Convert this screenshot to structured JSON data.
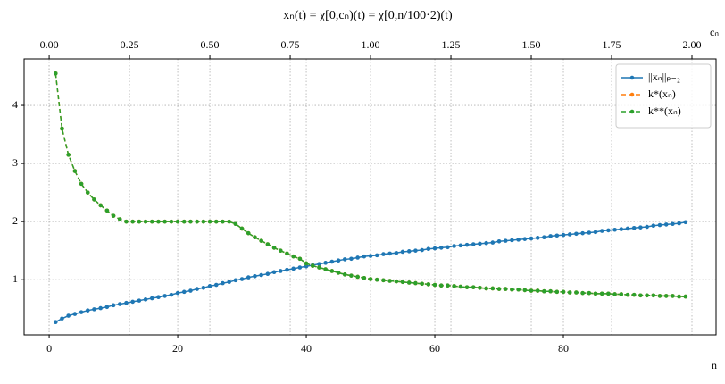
{
  "chart_data": {
    "type": "line",
    "title": "xₙ(t) = χ[0,cₙ)(t) = χ[0,n/100·2)(t)",
    "xlabel": "n",
    "x2label": "cₙ",
    "x": [
      1,
      2,
      3,
      4,
      5,
      6,
      7,
      8,
      9,
      10,
      11,
      12,
      13,
      14,
      15,
      16,
      17,
      18,
      19,
      20,
      21,
      22,
      23,
      24,
      25,
      26,
      27,
      28,
      29,
      30,
      31,
      32,
      33,
      34,
      35,
      36,
      37,
      38,
      39,
      40,
      41,
      42,
      43,
      44,
      45,
      46,
      47,
      48,
      49,
      50,
      51,
      52,
      53,
      54,
      55,
      56,
      57,
      58,
      59,
      60,
      61,
      62,
      63,
      64,
      65,
      66,
      67,
      68,
      69,
      70,
      71,
      72,
      73,
      74,
      75,
      76,
      77,
      78,
      79,
      80,
      81,
      82,
      83,
      84,
      85,
      86,
      87,
      88,
      89,
      90,
      91,
      92,
      93,
      94,
      95,
      96,
      97,
      98,
      99
    ],
    "series": [
      {
        "name": "||xₙ||ₚ₌₂",
        "color": "#1f77b4",
        "dashed": false,
        "values": [
          0.27,
          0.33,
          0.38,
          0.41,
          0.44,
          0.47,
          0.49,
          0.51,
          0.53,
          0.56,
          0.58,
          0.6,
          0.62,
          0.64,
          0.66,
          0.68,
          0.7,
          0.72,
          0.74,
          0.77,
          0.79,
          0.81,
          0.84,
          0.86,
          0.89,
          0.91,
          0.94,
          0.96,
          0.99,
          1.01,
          1.04,
          1.06,
          1.08,
          1.1,
          1.13,
          1.15,
          1.17,
          1.19,
          1.21,
          1.23,
          1.25,
          1.27,
          1.29,
          1.31,
          1.33,
          1.35,
          1.36,
          1.38,
          1.4,
          1.41,
          1.42,
          1.44,
          1.45,
          1.46,
          1.48,
          1.49,
          1.5,
          1.51,
          1.53,
          1.54,
          1.55,
          1.56,
          1.58,
          1.59,
          1.6,
          1.61,
          1.62,
          1.63,
          1.64,
          1.66,
          1.67,
          1.68,
          1.69,
          1.7,
          1.71,
          1.72,
          1.73,
          1.75,
          1.76,
          1.77,
          1.78,
          1.79,
          1.8,
          1.81,
          1.82,
          1.84,
          1.85,
          1.86,
          1.87,
          1.88,
          1.89,
          1.9,
          1.91,
          1.93,
          1.94,
          1.95,
          1.96,
          1.97,
          1.99
        ]
      },
      {
        "name": "k*(xₙ)",
        "color": "#ff7f0e",
        "dashed": true,
        "values": [
          4.55,
          3.6,
          3.15,
          2.87,
          2.65,
          2.5,
          2.38,
          2.28,
          2.19,
          2.1,
          2.04,
          2.0,
          2.0,
          2.0,
          2.0,
          2.0,
          2.0,
          2.0,
          2.0,
          2.0,
          2.0,
          2.0,
          2.0,
          2.0,
          2.0,
          2.0,
          2.0,
          2.0,
          1.96,
          1.88,
          1.8,
          1.73,
          1.67,
          1.61,
          1.55,
          1.5,
          1.45,
          1.4,
          1.36,
          1.28,
          1.24,
          1.21,
          1.18,
          1.15,
          1.12,
          1.09,
          1.07,
          1.05,
          1.03,
          1.01,
          1.0,
          0.99,
          0.98,
          0.97,
          0.96,
          0.95,
          0.94,
          0.93,
          0.92,
          0.91,
          0.9,
          0.9,
          0.89,
          0.88,
          0.87,
          0.87,
          0.86,
          0.85,
          0.85,
          0.84,
          0.84,
          0.83,
          0.83,
          0.82,
          0.81,
          0.81,
          0.8,
          0.8,
          0.79,
          0.79,
          0.78,
          0.78,
          0.77,
          0.77,
          0.76,
          0.76,
          0.76,
          0.75,
          0.75,
          0.74,
          0.74,
          0.73,
          0.73,
          0.73,
          0.72,
          0.72,
          0.72,
          0.71,
          0.71
        ]
      },
      {
        "name": "k**(xₙ)",
        "color": "#2ca02c",
        "dashed": true,
        "values": [
          4.55,
          3.6,
          3.15,
          2.87,
          2.65,
          2.5,
          2.38,
          2.28,
          2.19,
          2.1,
          2.04,
          2.0,
          2.0,
          2.0,
          2.0,
          2.0,
          2.0,
          2.0,
          2.0,
          2.0,
          2.0,
          2.0,
          2.0,
          2.0,
          2.0,
          2.0,
          2.0,
          2.0,
          1.96,
          1.88,
          1.8,
          1.73,
          1.67,
          1.61,
          1.55,
          1.5,
          1.45,
          1.4,
          1.36,
          1.28,
          1.24,
          1.21,
          1.18,
          1.15,
          1.12,
          1.09,
          1.07,
          1.05,
          1.03,
          1.01,
          1.0,
          0.99,
          0.98,
          0.97,
          0.96,
          0.95,
          0.94,
          0.93,
          0.92,
          0.91,
          0.9,
          0.9,
          0.89,
          0.88,
          0.87,
          0.87,
          0.86,
          0.85,
          0.85,
          0.84,
          0.84,
          0.83,
          0.83,
          0.82,
          0.81,
          0.81,
          0.8,
          0.8,
          0.79,
          0.79,
          0.78,
          0.78,
          0.77,
          0.77,
          0.76,
          0.76,
          0.76,
          0.75,
          0.75,
          0.74,
          0.74,
          0.73,
          0.73,
          0.73,
          0.72,
          0.72,
          0.72,
          0.71,
          0.71
        ]
      }
    ],
    "xlim": [
      -3.9,
      103.75
    ],
    "xticks": [
      0,
      20,
      40,
      60,
      80
    ],
    "x2lim": [
      -0.078,
      2.075
    ],
    "x2ticks": [
      {
        "value": 0,
        "label": "0.00"
      },
      {
        "value": 0.25,
        "label": "0.25"
      },
      {
        "value": 0.5,
        "label": "0.50"
      },
      {
        "value": 0.75,
        "label": "0.75"
      },
      {
        "value": 1,
        "label": "1.00"
      },
      {
        "value": 1.25,
        "label": "1.25"
      },
      {
        "value": 1.5,
        "label": "1.50"
      },
      {
        "value": 1.75,
        "label": "1.75"
      },
      {
        "value": 2,
        "label": "2.00"
      }
    ],
    "ylim": [
      0.05,
      4.8
    ],
    "yticks": [
      1,
      2,
      3,
      4
    ],
    "grid": true,
    "legend": "upper right"
  }
}
